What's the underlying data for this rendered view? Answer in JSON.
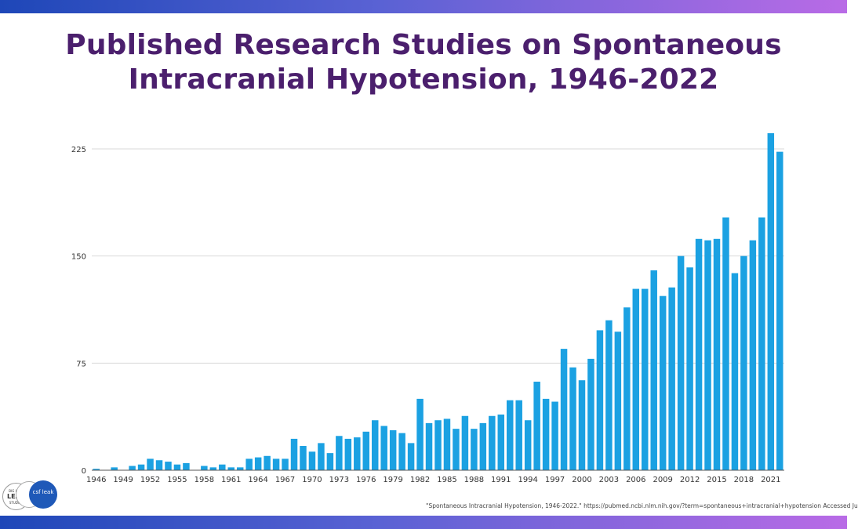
{
  "page": {
    "title_line1": "Published Research Studies on Spontaneous",
    "title_line2": "Intracranial Hypotension, 1946-2022",
    "source_note": "\"Spontaneous Intracranial Hypotension, 1946-2022.\" https://pubmed.ncbi.nlm.nih.gov/?term=spontaneous+intracranial+hypotension Accessed Ju",
    "accent_gradient": [
      "#1e47b8",
      "#b96be6"
    ],
    "title_color": "#4b1f6d"
  },
  "chart_data": {
    "type": "bar",
    "bar_color": "#1ba1e2",
    "ylim": [
      0,
      240
    ],
    "yticks": [
      0,
      75,
      150,
      225
    ],
    "grid": true,
    "categories": [
      "1946",
      "1947",
      "1948",
      "1949",
      "1950",
      "1951",
      "1952",
      "1953",
      "1954",
      "1955",
      "1956",
      "1957",
      "1958",
      "1959",
      "1960",
      "1961",
      "1962",
      "1963",
      "1964",
      "1965",
      "1966",
      "1967",
      "1968",
      "1969",
      "1970",
      "1971",
      "1972",
      "1973",
      "1974",
      "1975",
      "1976",
      "1977",
      "1978",
      "1979",
      "1980",
      "1981",
      "1982",
      "1983",
      "1984",
      "1985",
      "1986",
      "1987",
      "1988",
      "1989",
      "1990",
      "1991",
      "1992",
      "1993",
      "1994",
      "1995",
      "1996",
      "1997",
      "1998",
      "1999",
      "2000",
      "2001",
      "2002",
      "2003",
      "2004",
      "2005",
      "2006",
      "2007",
      "2008",
      "2009",
      "2010",
      "2011",
      "2012",
      "2013",
      "2014",
      "2015",
      "2016",
      "2017",
      "2018",
      "2019",
      "2020",
      "2021",
      "2022"
    ],
    "xtick_labels": [
      "1946",
      "1949",
      "1952",
      "1955",
      "1958",
      "1961",
      "1964",
      "1967",
      "1970",
      "1973",
      "1976",
      "1979",
      "1982",
      "1985",
      "1988",
      "1991",
      "1994",
      "1997",
      "2000",
      "2003",
      "2006",
      "2009",
      "2012",
      "2015",
      "2018",
      "2021"
    ],
    "values": [
      1,
      0,
      2,
      0,
      3,
      4,
      8,
      7,
      6,
      4,
      5,
      0,
      3,
      2,
      4,
      2,
      2,
      8,
      9,
      10,
      8,
      8,
      22,
      17,
      13,
      19,
      12,
      24,
      22,
      23,
      27,
      35,
      31,
      28,
      26,
      19,
      50,
      33,
      35,
      36,
      29,
      38,
      29,
      33,
      38,
      39,
      49,
      49,
      35,
      62,
      50,
      48,
      85,
      72,
      63,
      78,
      98,
      105,
      97,
      114,
      127,
      127,
      140,
      122,
      128,
      150,
      142,
      162,
      161,
      162,
      177,
      138,
      150,
      161,
      177,
      236,
      223
    ]
  }
}
